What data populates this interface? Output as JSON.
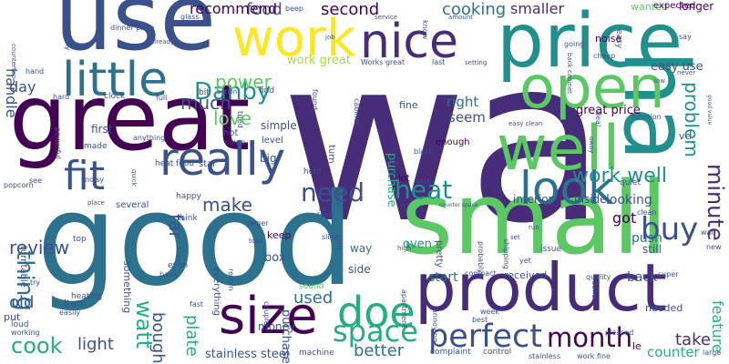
{
  "palette": {
    "purple": "#440154",
    "indigo": "#472c7a",
    "blue": "#3b518b",
    "steel": "#2c718e",
    "teal": "#21908d",
    "seagreen": "#27ad81",
    "green": "#5cc863",
    "lime": "#aadc32",
    "yellow": "#fde725"
  },
  "words": [
    {
      "text": "wa",
      "color": "indigo"
    },
    {
      "text": "good",
      "color": "steel"
    },
    {
      "text": "great",
      "color": "purple"
    },
    {
      "text": "use",
      "color": "blue"
    },
    {
      "text": "price",
      "color": "teal"
    },
    {
      "text": "small",
      "color": "green"
    },
    {
      "text": "product",
      "color": "indigo"
    },
    {
      "text": "nice",
      "color": "indigo"
    },
    {
      "text": "work",
      "color": "yellow"
    },
    {
      "text": "ha",
      "color": "teal"
    },
    {
      "text": "open",
      "color": "green"
    },
    {
      "text": "well",
      "color": "green"
    },
    {
      "text": "size",
      "color": "purple"
    },
    {
      "text": "little",
      "color": "steel"
    },
    {
      "text": "fit",
      "color": "blue"
    },
    {
      "text": "really",
      "color": "blue"
    },
    {
      "text": "look",
      "color": "steel"
    },
    {
      "text": "doe",
      "color": "seagreen"
    },
    {
      "text": "space",
      "color": "seagreen"
    },
    {
      "text": "perfect",
      "color": "blue"
    },
    {
      "text": "month",
      "color": "purple"
    },
    {
      "text": "heat",
      "color": "teal"
    },
    {
      "text": "need",
      "color": "blue"
    },
    {
      "text": "buy",
      "color": "blue"
    },
    {
      "text": "Danby",
      "color": "teal"
    },
    {
      "text": "watt",
      "color": "seagreen"
    },
    {
      "text": "cook",
      "color": "seagreen"
    },
    {
      "text": "thing",
      "color": "steel"
    },
    {
      "text": "work well",
      "color": "teal"
    },
    {
      "text": "minute",
      "color": "indigo"
    },
    {
      "text": "problem",
      "color": "teal"
    },
    {
      "text": "review",
      "color": "blue"
    },
    {
      "text": "love",
      "color": "green"
    },
    {
      "text": "much",
      "color": "blue"
    },
    {
      "text": "power",
      "color": "green"
    },
    {
      "text": "make",
      "color": "blue"
    },
    {
      "text": "far",
      "color": "blue"
    },
    {
      "text": "bought",
      "color": "blue"
    },
    {
      "text": "plate",
      "color": "seagreen"
    },
    {
      "text": "light",
      "color": "blue"
    },
    {
      "text": "used",
      "color": "steel"
    },
    {
      "text": "better",
      "color": "steel"
    },
    {
      "text": "take",
      "color": "indigo"
    },
    {
      "text": "old",
      "color": "blue"
    },
    {
      "text": "food",
      "color": "blue"
    },
    {
      "text": "second",
      "color": "purple"
    },
    {
      "text": "cooking",
      "color": "steel"
    },
    {
      "text": "smaller",
      "color": "indigo"
    },
    {
      "text": "day",
      "color": "blue"
    },
    {
      "text": "handle",
      "color": "blue"
    },
    {
      "text": "recommend",
      "color": "purple"
    },
    {
      "text": "work great",
      "color": "lime"
    },
    {
      "text": "right",
      "color": "steel"
    },
    {
      "text": "seem",
      "color": "blue"
    },
    {
      "text": "got",
      "color": "purple"
    },
    {
      "text": "looking",
      "color": "blue"
    },
    {
      "text": "push",
      "color": "steel"
    },
    {
      "text": "great price",
      "color": "purple"
    },
    {
      "text": "easy use",
      "color": "blue"
    },
    {
      "text": "feature",
      "color": "seagreen"
    },
    {
      "text": "counter",
      "color": "seagreen"
    },
    {
      "text": "back",
      "color": "blue"
    },
    {
      "text": "start",
      "color": "steel"
    },
    {
      "text": "purchase",
      "color": "seagreen"
    },
    {
      "text": "oven",
      "color": "teal"
    },
    {
      "text": "purchased",
      "color": "blue"
    },
    {
      "text": "stainless steel",
      "color": "blue"
    },
    {
      "text": "box",
      "color": "blue"
    },
    {
      "text": "money",
      "color": "blue"
    },
    {
      "text": "first",
      "color": "blue"
    },
    {
      "text": "simple",
      "color": "blue"
    },
    {
      "text": "big",
      "color": "blue"
    },
    {
      "text": "interior",
      "color": "blue"
    },
    {
      "text": "inside",
      "color": "blue"
    },
    {
      "text": "still",
      "color": "blue"
    },
    {
      "text": "longer",
      "color": "purple"
    },
    {
      "text": "noise",
      "color": "purple"
    },
    {
      "text": "wanted",
      "color": "green"
    },
    {
      "text": "expected",
      "color": "purple"
    },
    {
      "text": "fine",
      "color": "blue"
    },
    {
      "text": "hot",
      "color": "blue"
    },
    {
      "text": "lot",
      "color": "purple"
    },
    {
      "text": "enough",
      "color": "purple"
    },
    {
      "text": "side",
      "color": "blue"
    },
    {
      "text": "way",
      "color": "steel"
    },
    {
      "text": "sound",
      "color": "green"
    },
    {
      "text": "received",
      "color": "blue"
    },
    {
      "text": "needed",
      "color": "blue"
    },
    {
      "text": "item",
      "color": "blue"
    },
    {
      "text": "put",
      "color": "blue"
    },
    {
      "text": "le",
      "color": "purple"
    },
    {
      "text": "ve",
      "color": "blue"
    },
    {
      "text": "something",
      "color": "blue"
    },
    {
      "text": "everything",
      "color": "blue"
    },
    {
      "text": "keep",
      "color": "purple"
    },
    {
      "text": "star",
      "color": "blue"
    },
    {
      "text": "made",
      "color": "blue"
    },
    {
      "text": "turntable",
      "color": "blue"
    },
    {
      "text": "top",
      "color": "blue"
    },
    {
      "text": "popcorn",
      "color": "blue"
    },
    {
      "text": "heating",
      "color": "blue"
    },
    {
      "text": "heat food",
      "color": "blue"
    },
    {
      "text": "level",
      "color": "blue"
    },
    {
      "text": "turn",
      "color": "blue"
    },
    {
      "text": "hold",
      "color": "blue"
    },
    {
      "text": "read",
      "color": "blue"
    },
    {
      "text": "happy",
      "color": "blue"
    },
    {
      "text": "several",
      "color": "blue"
    },
    {
      "text": "think",
      "color": "blue"
    },
    {
      "text": "even",
      "color": "blue"
    },
    {
      "text": "basic",
      "color": "blue"
    },
    {
      "text": "find",
      "color": "blue"
    },
    {
      "text": "bit",
      "color": "blue"
    },
    {
      "text": "clock",
      "color": "blue"
    },
    {
      "text": "hard",
      "color": "blue"
    },
    {
      "text": "hand",
      "color": "blue"
    },
    {
      "text": "full",
      "color": "blue"
    },
    {
      "text": "beep",
      "color": "blue"
    },
    {
      "text": "Works great",
      "color": "blue"
    },
    {
      "text": "last",
      "color": "blue"
    },
    {
      "text": "pretty",
      "color": "blue"
    },
    {
      "text": "yet",
      "color": "blue"
    },
    {
      "text": "issue",
      "color": "blue"
    },
    {
      "text": "quiet",
      "color": "blue"
    },
    {
      "text": "cheap",
      "color": "blue"
    },
    {
      "text": "going",
      "color": "blue"
    },
    {
      "text": "say",
      "color": "blue"
    },
    {
      "text": "clean",
      "color": "blue"
    },
    {
      "text": "super",
      "color": "blue"
    },
    {
      "text": "quality",
      "color": "blue"
    },
    {
      "text": "wall",
      "color": "blue"
    },
    {
      "text": "new",
      "color": "blue"
    },
    {
      "text": "large",
      "color": "blue"
    },
    {
      "text": "complaint",
      "color": "blue"
    },
    {
      "text": "control",
      "color": "blue"
    },
    {
      "text": "stainless",
      "color": "blue"
    },
    {
      "text": "work fine",
      "color": "blue"
    },
    {
      "text": "machine",
      "color": "blue"
    },
    {
      "text": "fast",
      "color": "blue"
    },
    {
      "text": "return",
      "color": "blue"
    },
    {
      "text": "couple",
      "color": "blue"
    },
    {
      "text": "loud",
      "color": "blue"
    },
    {
      "text": "working",
      "color": "blue"
    },
    {
      "text": "easily",
      "color": "blue"
    },
    {
      "text": "try",
      "color": "blue"
    },
    {
      "text": "see",
      "color": "blue"
    },
    {
      "text": "noisy",
      "color": "blue"
    },
    {
      "text": "glass",
      "color": "blue"
    },
    {
      "text": "countertop",
      "color": "blue"
    },
    {
      "text": "perfectly",
      "color": "blue"
    },
    {
      "text": "dinner plate",
      "color": "blue"
    },
    {
      "text": "already",
      "color": "blue"
    },
    {
      "text": "option",
      "color": "blue"
    },
    {
      "text": "tried",
      "color": "blue"
    },
    {
      "text": "job",
      "color": "blue"
    },
    {
      "text": "cabinet",
      "color": "blue"
    },
    {
      "text": "found",
      "color": "blue"
    },
    {
      "text": "come",
      "color": "blue"
    },
    {
      "text": "powerful",
      "color": "blue"
    },
    {
      "text": "anything",
      "color": "blue"
    },
    {
      "text": "quick",
      "color": "blue"
    },
    {
      "text": "larger",
      "color": "blue"
    },
    {
      "text": "place",
      "color": "blue"
    },
    {
      "text": "want",
      "color": "blue"
    },
    {
      "text": "wish",
      "color": "blue"
    },
    {
      "text": "black",
      "color": "blue"
    },
    {
      "text": "service",
      "color": "blue"
    },
    {
      "text": "know",
      "color": "blue"
    },
    {
      "text": "amount",
      "color": "blue"
    },
    {
      "text": "setting",
      "color": "blue"
    },
    {
      "text": "back cabinet",
      "color": "blue"
    },
    {
      "text": "easy clean",
      "color": "blue"
    },
    {
      "text": "deal",
      "color": "blue"
    },
    {
      "text": "away",
      "color": "blue"
    },
    {
      "text": "function",
      "color": "blue"
    },
    {
      "text": "low",
      "color": "blue"
    },
    {
      "text": "never",
      "color": "blue"
    },
    {
      "text": "good value",
      "color": "blue"
    },
    {
      "text": "easy",
      "color": "blue"
    },
    {
      "text": "high",
      "color": "blue"
    },
    {
      "text": "run",
      "color": "blue"
    },
    {
      "text": "probably",
      "color": "blue"
    },
    {
      "text": "shipping",
      "color": "blue"
    },
    {
      "text": "compact",
      "color": "blue"
    },
    {
      "text": "apartment",
      "color": "blue"
    },
    {
      "text": "annoying",
      "color": "blue"
    },
    {
      "text": "week",
      "color": "blue"
    },
    {
      "text": "best",
      "color": "blue"
    },
    {
      "text": "done",
      "color": "blue"
    },
    {
      "text": "pleased",
      "color": "blue"
    },
    {
      "text": "slide",
      "color": "blue"
    },
    {
      "text": "took",
      "color": "blue"
    },
    {
      "text": "counter space",
      "color": "blue"
    },
    {
      "text": "touch",
      "color": "blue"
    },
    {
      "text": "turn",
      "color": "blue"
    },
    {
      "text": "re",
      "color": "blue"
    },
    {
      "text": "set",
      "color": "blue"
    }
  ]
}
